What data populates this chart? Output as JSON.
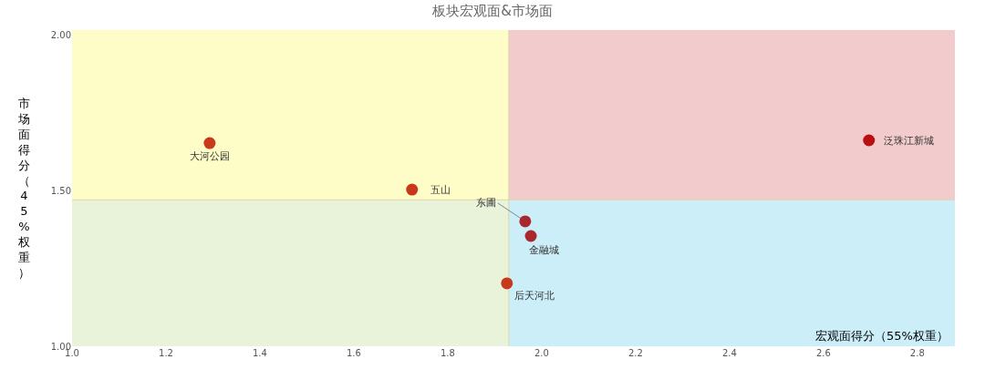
{
  "chart_data": {
    "type": "scatter",
    "title": "板块宏观面&市场面",
    "xlabel": "宏观面得分（55%权重）",
    "ylabel": "市场面得分（45%权重）",
    "x": [
      1.293,
      1.724,
      2.697,
      1.965,
      1.977,
      1.926
    ],
    "values": [
      1.652,
      1.503,
      1.661,
      1.401,
      1.354,
      1.202
    ],
    "colors": [
      "#c8381a",
      "#c8381a",
      "#b81010",
      "#a8282e",
      "#a8282e",
      "#c8381a"
    ],
    "annotations": [
      {
        "text": "大河公园",
        "x": 1.293,
        "y": 1.652
      },
      {
        "text": "五山",
        "x": 1.724,
        "y": 1.503
      },
      {
        "text": "泛珠江新城",
        "x": 2.697,
        "y": 1.661
      },
      {
        "text": "东圃",
        "x": 1.965,
        "y": 1.401
      },
      {
        "text": "金融城",
        "x": 1.977,
        "y": 1.354
      },
      {
        "text": "后天河北",
        "x": 1.926,
        "y": 1.202
      }
    ],
    "ref_lines": [
      {
        "axis": "x",
        "value": 1.93,
        "color": "#d8d8a8"
      },
      {
        "axis": "y",
        "value": 1.47,
        "color": "#d8d8a8"
      }
    ],
    "bands": [
      {
        "axis": "x",
        "from": 1.0,
        "to": 1.93,
        "color": "#fefdc8"
      },
      {
        "axis": "x",
        "from": 1.93,
        "to": 2.88,
        "color": "#f2cbcc"
      },
      {
        "axis": "x",
        "from": 1.0,
        "to": 1.93,
        "color": "#e8f3da"
      },
      {
        "axis": "x",
        "from": 1.93,
        "to": 2.88,
        "color": "#cbeef8"
      }
    ],
    "xlim": [
      1.0,
      2.88
    ],
    "ylim": [
      1.0,
      2.015
    ],
    "xticks": [
      {
        "value": 1.0,
        "label": "1.0"
      },
      1.2,
      1.4,
      1.6,
      1.8,
      {
        "value": 2.0,
        "label": "2.0"
      },
      2.2,
      2.4,
      2.6,
      2.8
    ],
    "yticks": [
      {
        "value": 1.0,
        "label": "1.00"
      },
      {
        "value": 1.5,
        "label": "1.50"
      },
      {
        "value": 2.0,
        "label": "2.00"
      }
    ],
    "marker": "circle"
  }
}
